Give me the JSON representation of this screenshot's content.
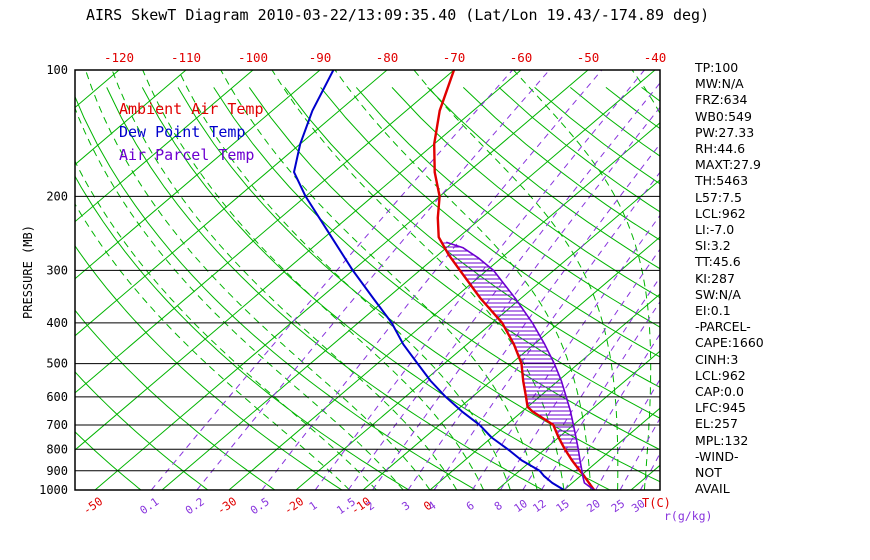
{
  "title": "AIRS SkewT Diagram 2010-03-22/13:09:35.40 (Lat/Lon 19.43/-174.89 deg)",
  "colors": {
    "ambient": "#e00000",
    "dewpoint": "#0000cc",
    "parcel": "#6d00d0",
    "isotherm": "#00b400",
    "dry_adiabat": "#00b400",
    "moist_adiabat": "#00b400",
    "mixing_ratio": "#8833dd",
    "pressure_line": "#000000"
  },
  "legend": [
    {
      "label": "Ambient Air Temp",
      "color_key": "ambient"
    },
    {
      "label": "Dew Point Temp",
      "color_key": "dewpoint"
    },
    {
      "label": "Air Parcel Temp",
      "color_key": "parcel"
    }
  ],
  "axes": {
    "y_label": "PRESSURE (MB)",
    "pressure_ticks": [
      100,
      200,
      300,
      400,
      500,
      600,
      700,
      800,
      900,
      1000
    ],
    "top_temp_ticks": [
      -120,
      -110,
      -100,
      -90,
      -80,
      -70,
      -60,
      -50,
      -40
    ],
    "bottom_temp_ticks": [
      -50,
      -30,
      -20,
      -10,
      0
    ],
    "bottom_temp_unit": "T(C)",
    "mixing_ratio_ticks": [
      0.1,
      0.2,
      0.5,
      1,
      1.5,
      2,
      3,
      4,
      6,
      8,
      10,
      12,
      15,
      20,
      25,
      30
    ],
    "mixing_ratio_unit": "r(g/kg)"
  },
  "stats": [
    "TP:100",
    "MW:N/A",
    "FRZ:634",
    "WB0:549",
    "PW:27.33",
    "RH:44.6",
    "MAXT:27.9",
    "TH:5463",
    "L57:7.5",
    "LCL:962",
    "LI:-7.0",
    "SI:3.2",
    "TT:45.6",
    "KI:287",
    "SW:N/A",
    "EI:0.1",
    "-PARCEL-",
    "CAPE:1660",
    "CINH:3",
    "LCL:962",
    "CAP:0.0",
    "LFC:945",
    "EL:257",
    "MPL:132",
    "-WIND-",
    "NOT",
    "AVAIL"
  ],
  "chart_data": {
    "type": "line",
    "subtype": "skewt_logp",
    "pressure_axis": {
      "min": 100,
      "max": 1000,
      "scale": "log",
      "units": "mb"
    },
    "temp_axis_top_C": [
      -120,
      -40
    ],
    "temp_axis_bottom_C": [
      -53,
      34
    ],
    "isotherms_C": {
      "min": -160,
      "max": 40,
      "step": 10
    },
    "dry_adiabats_K": {
      "min": 220,
      "max": 440,
      "step": 10
    },
    "moist_adiabats_C": {
      "min": -12,
      "max": 36,
      "step": 4
    },
    "mixing_ratio_lines_gkg": [
      0.1,
      0.2,
      0.5,
      1,
      1.5,
      2,
      3,
      4,
      6,
      8,
      10,
      12,
      15,
      20,
      25,
      30
    ],
    "hatch": {
      "bottom_mb": 945,
      "top_mb": 257
    },
    "series": [
      {
        "name": "ambient_temp",
        "color_key": "ambient",
        "width": 2.4,
        "units": [
          "mb",
          "C"
        ],
        "points": [
          [
            1000,
            24.5
          ],
          [
            962,
            22.5
          ],
          [
            925,
            20.5
          ],
          [
            900,
            19
          ],
          [
            850,
            16
          ],
          [
            800,
            13
          ],
          [
            750,
            10
          ],
          [
            700,
            7
          ],
          [
            650,
            1.5
          ],
          [
            634,
            0
          ],
          [
            600,
            -2
          ],
          [
            550,
            -5.2
          ],
          [
            500,
            -8.5
          ],
          [
            450,
            -13
          ],
          [
            400,
            -18.5
          ],
          [
            350,
            -26
          ],
          [
            300,
            -34
          ],
          [
            275,
            -38.5
          ],
          [
            250,
            -43
          ],
          [
            225,
            -46.5
          ],
          [
            200,
            -50
          ],
          [
            175,
            -55
          ],
          [
            150,
            -60
          ],
          [
            125,
            -65
          ],
          [
            100,
            -70
          ]
        ]
      },
      {
        "name": "dew_point_temp",
        "color_key": "dewpoint",
        "width": 2,
        "units": [
          "mb",
          "C"
        ],
        "points": [
          [
            1000,
            20
          ],
          [
            962,
            17
          ],
          [
            925,
            14.5
          ],
          [
            900,
            13
          ],
          [
            850,
            8.5
          ],
          [
            800,
            4.5
          ],
          [
            750,
            0
          ],
          [
            700,
            -4
          ],
          [
            650,
            -9
          ],
          [
            600,
            -14
          ],
          [
            550,
            -19
          ],
          [
            500,
            -24
          ],
          [
            450,
            -29.5
          ],
          [
            400,
            -35
          ],
          [
            350,
            -42
          ],
          [
            300,
            -50
          ],
          [
            250,
            -59
          ],
          [
            200,
            -70
          ],
          [
            175,
            -76
          ],
          [
            150,
            -80
          ],
          [
            125,
            -84
          ],
          [
            100,
            -88
          ]
        ]
      },
      {
        "name": "air_parcel_temp",
        "color_key": "parcel",
        "width": 1.6,
        "units": [
          "mb",
          "C"
        ],
        "points": [
          [
            1000,
            24.5
          ],
          [
            962,
            21.8
          ],
          [
            925,
            20.3
          ],
          [
            900,
            19.3
          ],
          [
            850,
            17.2
          ],
          [
            800,
            15
          ],
          [
            750,
            12.6
          ],
          [
            700,
            10
          ],
          [
            650,
            7.2
          ],
          [
            600,
            4
          ],
          [
            550,
            0.5
          ],
          [
            500,
            -3.6
          ],
          [
            450,
            -8.4
          ],
          [
            400,
            -14
          ],
          [
            350,
            -20.8
          ],
          [
            300,
            -29
          ],
          [
            280,
            -33.5
          ],
          [
            265,
            -37.5
          ],
          [
            257,
            -41
          ]
        ]
      }
    ]
  }
}
